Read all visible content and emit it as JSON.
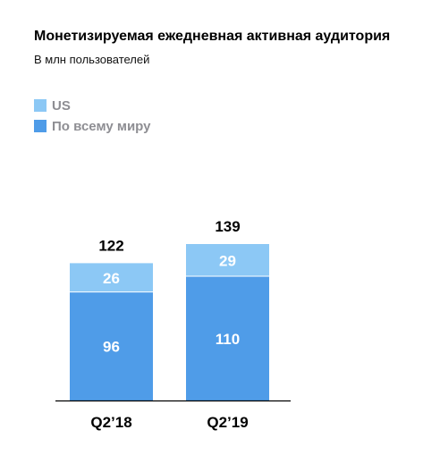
{
  "chart_data": {
    "type": "bar",
    "stacked": true,
    "title": "Монетизируемая ежедневная активная аудитория",
    "subtitle": "В млн пользователей",
    "categories": [
      "Q2’18",
      "Q2’19"
    ],
    "series": [
      {
        "name": "По всему миру",
        "values": [
          96,
          110
        ],
        "color": "#4f9ce8"
      },
      {
        "name": "US",
        "values": [
          26,
          29
        ],
        "color": "#8cc8f5"
      }
    ],
    "totals": [
      122,
      139
    ],
    "ylim": [
      0,
      139
    ],
    "grid": false,
    "legend_position": "top-left",
    "legend_order": [
      "US",
      "По всему миру"
    ]
  }
}
